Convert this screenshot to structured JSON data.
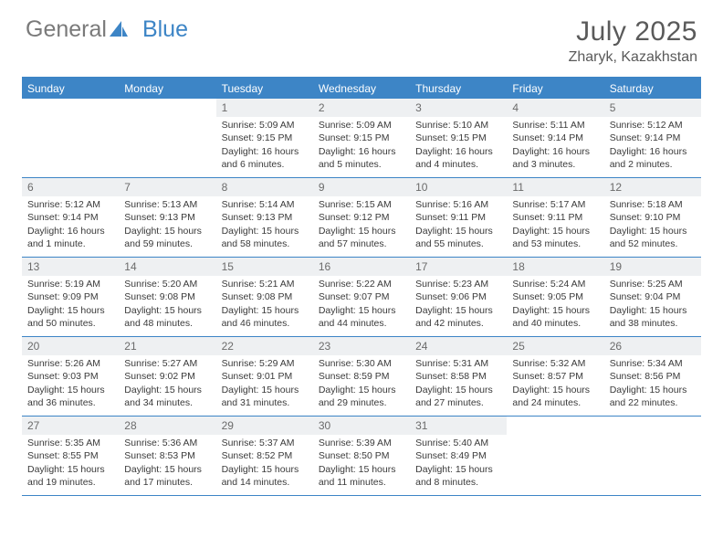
{
  "brand": {
    "part1": "General",
    "part2": "Blue"
  },
  "title": "July 2025",
  "location": "Zharyk, Kazakhstan",
  "colors": {
    "accent": "#3d85c6",
    "headerText": "#ffffff",
    "dayNumBg": "#eef0f2",
    "dayNumText": "#6b6b6b",
    "bodyText": "#3a3a3a",
    "titleText": "#5a5a5a",
    "logoGray": "#7a7a7a"
  },
  "dayHeaders": [
    "Sunday",
    "Monday",
    "Tuesday",
    "Wednesday",
    "Thursday",
    "Friday",
    "Saturday"
  ],
  "weeks": [
    [
      {
        "empty": true
      },
      {
        "empty": true
      },
      {
        "day": "1",
        "sunrise": "Sunrise: 5:09 AM",
        "sunset": "Sunset: 9:15 PM",
        "daylight1": "Daylight: 16 hours",
        "daylight2": "and 6 minutes."
      },
      {
        "day": "2",
        "sunrise": "Sunrise: 5:09 AM",
        "sunset": "Sunset: 9:15 PM",
        "daylight1": "Daylight: 16 hours",
        "daylight2": "and 5 minutes."
      },
      {
        "day": "3",
        "sunrise": "Sunrise: 5:10 AM",
        "sunset": "Sunset: 9:15 PM",
        "daylight1": "Daylight: 16 hours",
        "daylight2": "and 4 minutes."
      },
      {
        "day": "4",
        "sunrise": "Sunrise: 5:11 AM",
        "sunset": "Sunset: 9:14 PM",
        "daylight1": "Daylight: 16 hours",
        "daylight2": "and 3 minutes."
      },
      {
        "day": "5",
        "sunrise": "Sunrise: 5:12 AM",
        "sunset": "Sunset: 9:14 PM",
        "daylight1": "Daylight: 16 hours",
        "daylight2": "and 2 minutes."
      }
    ],
    [
      {
        "day": "6",
        "sunrise": "Sunrise: 5:12 AM",
        "sunset": "Sunset: 9:14 PM",
        "daylight1": "Daylight: 16 hours",
        "daylight2": "and 1 minute."
      },
      {
        "day": "7",
        "sunrise": "Sunrise: 5:13 AM",
        "sunset": "Sunset: 9:13 PM",
        "daylight1": "Daylight: 15 hours",
        "daylight2": "and 59 minutes."
      },
      {
        "day": "8",
        "sunrise": "Sunrise: 5:14 AM",
        "sunset": "Sunset: 9:13 PM",
        "daylight1": "Daylight: 15 hours",
        "daylight2": "and 58 minutes."
      },
      {
        "day": "9",
        "sunrise": "Sunrise: 5:15 AM",
        "sunset": "Sunset: 9:12 PM",
        "daylight1": "Daylight: 15 hours",
        "daylight2": "and 57 minutes."
      },
      {
        "day": "10",
        "sunrise": "Sunrise: 5:16 AM",
        "sunset": "Sunset: 9:11 PM",
        "daylight1": "Daylight: 15 hours",
        "daylight2": "and 55 minutes."
      },
      {
        "day": "11",
        "sunrise": "Sunrise: 5:17 AM",
        "sunset": "Sunset: 9:11 PM",
        "daylight1": "Daylight: 15 hours",
        "daylight2": "and 53 minutes."
      },
      {
        "day": "12",
        "sunrise": "Sunrise: 5:18 AM",
        "sunset": "Sunset: 9:10 PM",
        "daylight1": "Daylight: 15 hours",
        "daylight2": "and 52 minutes."
      }
    ],
    [
      {
        "day": "13",
        "sunrise": "Sunrise: 5:19 AM",
        "sunset": "Sunset: 9:09 PM",
        "daylight1": "Daylight: 15 hours",
        "daylight2": "and 50 minutes."
      },
      {
        "day": "14",
        "sunrise": "Sunrise: 5:20 AM",
        "sunset": "Sunset: 9:08 PM",
        "daylight1": "Daylight: 15 hours",
        "daylight2": "and 48 minutes."
      },
      {
        "day": "15",
        "sunrise": "Sunrise: 5:21 AM",
        "sunset": "Sunset: 9:08 PM",
        "daylight1": "Daylight: 15 hours",
        "daylight2": "and 46 minutes."
      },
      {
        "day": "16",
        "sunrise": "Sunrise: 5:22 AM",
        "sunset": "Sunset: 9:07 PM",
        "daylight1": "Daylight: 15 hours",
        "daylight2": "and 44 minutes."
      },
      {
        "day": "17",
        "sunrise": "Sunrise: 5:23 AM",
        "sunset": "Sunset: 9:06 PM",
        "daylight1": "Daylight: 15 hours",
        "daylight2": "and 42 minutes."
      },
      {
        "day": "18",
        "sunrise": "Sunrise: 5:24 AM",
        "sunset": "Sunset: 9:05 PM",
        "daylight1": "Daylight: 15 hours",
        "daylight2": "and 40 minutes."
      },
      {
        "day": "19",
        "sunrise": "Sunrise: 5:25 AM",
        "sunset": "Sunset: 9:04 PM",
        "daylight1": "Daylight: 15 hours",
        "daylight2": "and 38 minutes."
      }
    ],
    [
      {
        "day": "20",
        "sunrise": "Sunrise: 5:26 AM",
        "sunset": "Sunset: 9:03 PM",
        "daylight1": "Daylight: 15 hours",
        "daylight2": "and 36 minutes."
      },
      {
        "day": "21",
        "sunrise": "Sunrise: 5:27 AM",
        "sunset": "Sunset: 9:02 PM",
        "daylight1": "Daylight: 15 hours",
        "daylight2": "and 34 minutes."
      },
      {
        "day": "22",
        "sunrise": "Sunrise: 5:29 AM",
        "sunset": "Sunset: 9:01 PM",
        "daylight1": "Daylight: 15 hours",
        "daylight2": "and 31 minutes."
      },
      {
        "day": "23",
        "sunrise": "Sunrise: 5:30 AM",
        "sunset": "Sunset: 8:59 PM",
        "daylight1": "Daylight: 15 hours",
        "daylight2": "and 29 minutes."
      },
      {
        "day": "24",
        "sunrise": "Sunrise: 5:31 AM",
        "sunset": "Sunset: 8:58 PM",
        "daylight1": "Daylight: 15 hours",
        "daylight2": "and 27 minutes."
      },
      {
        "day": "25",
        "sunrise": "Sunrise: 5:32 AM",
        "sunset": "Sunset: 8:57 PM",
        "daylight1": "Daylight: 15 hours",
        "daylight2": "and 24 minutes."
      },
      {
        "day": "26",
        "sunrise": "Sunrise: 5:34 AM",
        "sunset": "Sunset: 8:56 PM",
        "daylight1": "Daylight: 15 hours",
        "daylight2": "and 22 minutes."
      }
    ],
    [
      {
        "day": "27",
        "sunrise": "Sunrise: 5:35 AM",
        "sunset": "Sunset: 8:55 PM",
        "daylight1": "Daylight: 15 hours",
        "daylight2": "and 19 minutes."
      },
      {
        "day": "28",
        "sunrise": "Sunrise: 5:36 AM",
        "sunset": "Sunset: 8:53 PM",
        "daylight1": "Daylight: 15 hours",
        "daylight2": "and 17 minutes."
      },
      {
        "day": "29",
        "sunrise": "Sunrise: 5:37 AM",
        "sunset": "Sunset: 8:52 PM",
        "daylight1": "Daylight: 15 hours",
        "daylight2": "and 14 minutes."
      },
      {
        "day": "30",
        "sunrise": "Sunrise: 5:39 AM",
        "sunset": "Sunset: 8:50 PM",
        "daylight1": "Daylight: 15 hours",
        "daylight2": "and 11 minutes."
      },
      {
        "day": "31",
        "sunrise": "Sunrise: 5:40 AM",
        "sunset": "Sunset: 8:49 PM",
        "daylight1": "Daylight: 15 hours",
        "daylight2": "and 8 minutes."
      },
      {
        "empty": true
      },
      {
        "empty": true
      }
    ]
  ]
}
